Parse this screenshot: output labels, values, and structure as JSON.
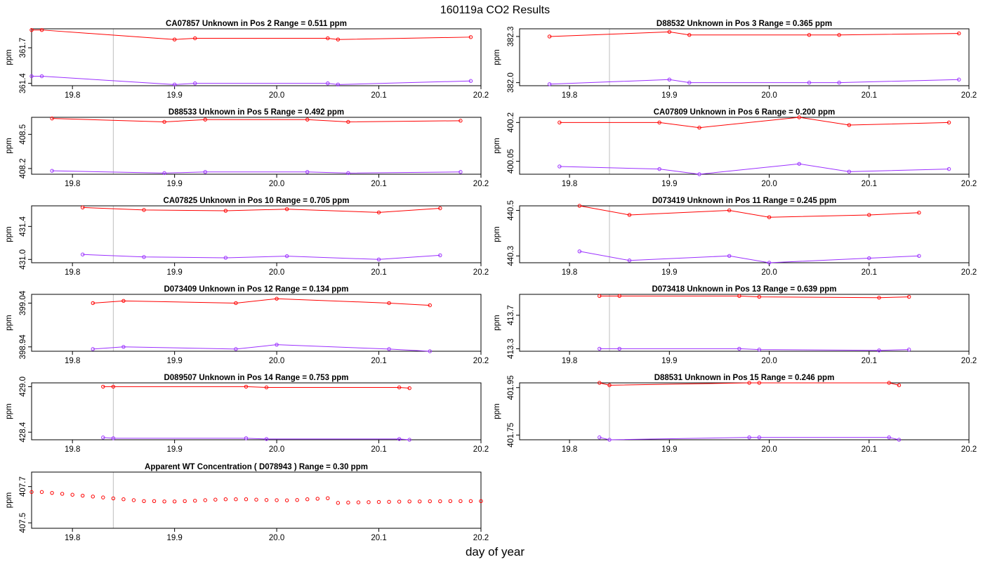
{
  "figure": {
    "title": "160119a  CO2 Results",
    "xlabel": "day of year"
  },
  "colors": {
    "upper": "#ff0000",
    "lower": "#9b30ff",
    "wt": "#ff0000",
    "axis": "#000000",
    "vline": "#bebebe"
  },
  "chart_data": [
    {
      "type": "line",
      "title": "CA07857    Unknown in Pos 2         Range =  0.511 ppm",
      "ylabel": "ppm",
      "xlim": [
        19.76,
        20.2
      ],
      "ylim": [
        361.38,
        361.86
      ],
      "xticks": [
        19.8,
        19.9,
        20.0,
        20.1,
        20.2
      ],
      "yticks": [
        361.4,
        361.7
      ],
      "vlines": [
        19.84,
        20.2
      ],
      "series": [
        {
          "role": "upper",
          "x": [
            19.76,
            19.77,
            19.9,
            19.92,
            20.05,
            20.06,
            20.19
          ],
          "y": [
            361.85,
            361.85,
            361.77,
            361.78,
            361.78,
            361.77,
            361.79
          ]
        },
        {
          "role": "lower",
          "x": [
            19.76,
            19.77,
            19.9,
            19.92,
            20.05,
            20.06,
            20.19
          ],
          "y": [
            361.46,
            361.46,
            361.39,
            361.4,
            361.4,
            361.39,
            361.42
          ]
        }
      ]
    },
    {
      "type": "line",
      "title": "D88532    Unknown in Pos 3         Range =  0.365 ppm",
      "ylabel": "ppm",
      "xlim": [
        19.75,
        20.2
      ],
      "ylim": [
        381.98,
        382.35
      ],
      "xticks": [
        19.8,
        19.9,
        20.0,
        20.1,
        20.2
      ],
      "yticks": [
        382.0,
        382.3
      ],
      "vlines": [
        19.84,
        20.2
      ],
      "series": [
        {
          "role": "upper",
          "x": [
            19.78,
            19.9,
            19.92,
            20.04,
            20.07,
            20.19
          ],
          "y": [
            382.3,
            382.33,
            382.31,
            382.31,
            382.31,
            382.32
          ]
        },
        {
          "role": "lower",
          "x": [
            19.78,
            19.9,
            19.92,
            20.04,
            20.07,
            20.19
          ],
          "y": [
            381.99,
            382.02,
            382.0,
            382.0,
            382.0,
            382.02
          ]
        }
      ]
    },
    {
      "type": "line",
      "title": "D88533    Unknown in Pos 5         Range =  0.492 ppm",
      "ylabel": "ppm",
      "xlim": [
        19.76,
        20.2
      ],
      "ylim": [
        408.15,
        408.65
      ],
      "xticks": [
        19.8,
        19.9,
        20.0,
        20.1,
        20.2
      ],
      "yticks": [
        408.2,
        408.5
      ],
      "vlines": [
        19.84,
        20.2
      ],
      "series": [
        {
          "role": "upper",
          "x": [
            19.78,
            19.89,
            19.93,
            20.03,
            20.07,
            20.18
          ],
          "y": [
            408.64,
            408.61,
            408.63,
            408.63,
            408.61,
            408.62
          ]
        },
        {
          "role": "lower",
          "x": [
            19.78,
            19.89,
            19.93,
            20.03,
            20.07,
            20.18
          ],
          "y": [
            408.18,
            408.16,
            408.17,
            408.17,
            408.16,
            408.17
          ]
        }
      ]
    },
    {
      "type": "line",
      "title": "CA07809    Unknown in Pos 6         Range =  0.200 ppm",
      "ylabel": "ppm",
      "xlim": [
        19.75,
        20.2
      ],
      "ylim": [
        400.0,
        400.22
      ],
      "xticks": [
        19.8,
        19.9,
        20.0,
        20.1,
        20.2
      ],
      "yticks": [
        400.05,
        400.2
      ],
      "vlines": [
        19.84,
        20.2
      ],
      "series": [
        {
          "role": "upper",
          "x": [
            19.79,
            19.89,
            19.93,
            20.03,
            20.08,
            20.18
          ],
          "y": [
            400.2,
            400.2,
            400.18,
            400.22,
            400.19,
            400.2
          ]
        },
        {
          "role": "lower",
          "x": [
            19.79,
            19.89,
            19.93,
            20.03,
            20.08,
            20.18
          ],
          "y": [
            400.03,
            400.02,
            400.0,
            400.04,
            400.01,
            400.02
          ]
        }
      ]
    },
    {
      "type": "line",
      "title": "CA07825    Unknown in Pos 10         Range =  0.705 ppm",
      "ylabel": "ppm",
      "xlim": [
        19.76,
        20.2
      ],
      "ylim": [
        430.96,
        431.65
      ],
      "xticks": [
        19.8,
        19.9,
        20.0,
        20.1,
        20.2
      ],
      "yticks": [
        431.0,
        431.4
      ],
      "vlines": [
        19.84,
        20.2
      ],
      "series": [
        {
          "role": "upper",
          "x": [
            19.81,
            19.87,
            19.95,
            20.01,
            20.1,
            20.16
          ],
          "y": [
            431.63,
            431.6,
            431.59,
            431.61,
            431.57,
            431.62
          ]
        },
        {
          "role": "lower",
          "x": [
            19.81,
            19.87,
            19.95,
            20.01,
            20.1,
            20.16
          ],
          "y": [
            431.06,
            431.03,
            431.02,
            431.04,
            431.0,
            431.05
          ]
        }
      ]
    },
    {
      "type": "line",
      "title": "D073419    Unknown in Pos 11         Range =  0.245 ppm",
      "ylabel": "ppm",
      "xlim": [
        19.75,
        20.2
      ],
      "ylim": [
        440.27,
        440.52
      ],
      "xticks": [
        19.8,
        19.9,
        20.0,
        20.1,
        20.2
      ],
      "yticks": [
        440.3,
        440.5
      ],
      "vlines": [
        19.84,
        20.2
      ],
      "series": [
        {
          "role": "upper",
          "x": [
            19.81,
            19.86,
            19.96,
            20.0,
            20.1,
            20.15
          ],
          "y": [
            440.52,
            440.48,
            440.5,
            440.47,
            440.48,
            440.49
          ]
        },
        {
          "role": "lower",
          "x": [
            19.81,
            19.86,
            19.96,
            20.0,
            20.1,
            20.15
          ],
          "y": [
            440.32,
            440.28,
            440.3,
            440.27,
            440.29,
            440.3
          ]
        }
      ]
    },
    {
      "type": "line",
      "title": "D073409    Unknown in Pos 12         Range =  0.134 ppm",
      "ylabel": "ppm",
      "xlim": [
        19.76,
        20.2
      ],
      "ylim": [
        398.93,
        399.06
      ],
      "xticks": [
        19.8,
        19.9,
        20.0,
        20.1,
        20.2
      ],
      "yticks": [
        398.94,
        399.04
      ],
      "vlines": [
        19.84,
        20.2
      ],
      "series": [
        {
          "role": "upper",
          "x": [
            19.82,
            19.85,
            19.96,
            20.0,
            20.11,
            20.15
          ],
          "y": [
            399.04,
            399.045,
            399.04,
            399.05,
            399.04,
            399.035
          ]
        },
        {
          "role": "lower",
          "x": [
            19.82,
            19.85,
            19.96,
            20.0,
            20.11,
            20.15
          ],
          "y": [
            398.935,
            398.94,
            398.935,
            398.945,
            398.935,
            398.93
          ]
        }
      ]
    },
    {
      "type": "line",
      "title": "D073418    Unknown in Pos 13         Range =  0.639 ppm",
      "ylabel": "ppm",
      "xlim": [
        19.75,
        20.2
      ],
      "ylim": [
        413.27,
        413.95
      ],
      "xticks": [
        19.8,
        19.9,
        20.0,
        20.1,
        20.2
      ],
      "yticks": [
        413.3,
        413.7
      ],
      "vlines": [
        19.84,
        20.2
      ],
      "series": [
        {
          "role": "upper",
          "x": [
            19.83,
            19.85,
            19.97,
            19.99,
            20.11,
            20.14
          ],
          "y": [
            413.93,
            413.93,
            413.93,
            413.92,
            413.91,
            413.92
          ]
        },
        {
          "role": "lower",
          "x": [
            19.83,
            19.85,
            19.97,
            19.99,
            20.11,
            20.14
          ],
          "y": [
            413.3,
            413.3,
            413.3,
            413.29,
            413.28,
            413.29
          ]
        }
      ]
    },
    {
      "type": "line",
      "title": "D089507    Unknown in Pos 14         Range =  0.753 ppm",
      "ylabel": "ppm",
      "xlim": [
        19.76,
        20.2
      ],
      "ylim": [
        428.3,
        429.05
      ],
      "xticks": [
        19.8,
        19.9,
        20.0,
        20.1,
        20.2
      ],
      "yticks": [
        428.4,
        429.0
      ],
      "vlines": [
        19.84,
        20.2
      ],
      "series": [
        {
          "role": "upper",
          "x": [
            19.83,
            19.84,
            19.97,
            19.99,
            20.12,
            20.13
          ],
          "y": [
            429.0,
            429.0,
            429.0,
            428.99,
            428.99,
            428.98
          ]
        },
        {
          "role": "lower",
          "x": [
            19.83,
            19.84,
            19.97,
            19.99,
            20.12,
            20.13
          ],
          "y": [
            428.33,
            428.32,
            428.32,
            428.31,
            428.31,
            428.3
          ]
        }
      ]
    },
    {
      "type": "line",
      "title": "D88531    Unknown in Pos 15         Range =  0.246 ppm",
      "ylabel": "ppm",
      "xlim": [
        19.75,
        20.2
      ],
      "ylim": [
        401.73,
        401.97
      ],
      "xticks": [
        19.8,
        19.9,
        20.0,
        20.1,
        20.2
      ],
      "yticks": [
        401.75,
        401.95
      ],
      "vlines": [
        19.84,
        20.2
      ],
      "series": [
        {
          "role": "upper",
          "x": [
            19.83,
            19.84,
            19.98,
            19.99,
            20.12,
            20.13
          ],
          "y": [
            401.97,
            401.96,
            401.97,
            401.97,
            401.97,
            401.96
          ]
        },
        {
          "role": "lower",
          "x": [
            19.83,
            19.84,
            19.98,
            19.99,
            20.12,
            20.13
          ],
          "y": [
            401.74,
            401.73,
            401.74,
            401.74,
            401.74,
            401.73
          ]
        }
      ]
    },
    {
      "type": "scatter",
      "title": "Apparent WT Concentration ( D078943 )         Range = 0.30 ppm",
      "ylabel": "ppm",
      "xlim": [
        19.76,
        20.2
      ],
      "ylim": [
        407.47,
        407.78
      ],
      "xticks": [
        19.8,
        19.9,
        20.0,
        20.1,
        20.2
      ],
      "yticks": [
        407.5,
        407.7
      ],
      "vlines": [
        19.84,
        20.2
      ],
      "series": [
        {
          "role": "wt",
          "x": [
            19.76,
            19.77,
            19.78,
            19.79,
            19.8,
            19.81,
            19.82,
            19.83,
            19.84,
            19.85,
            19.86,
            19.87,
            19.88,
            19.89,
            19.9,
            19.91,
            19.92,
            19.93,
            19.94,
            19.95,
            19.96,
            19.97,
            19.98,
            19.99,
            20.0,
            20.01,
            20.02,
            20.03,
            20.04,
            20.05,
            20.06,
            20.07,
            20.08,
            20.09,
            20.1,
            20.11,
            20.12,
            20.13,
            20.14,
            20.15,
            20.16,
            20.17,
            20.18,
            20.19,
            20.2
          ],
          "y": [
            407.67,
            407.67,
            407.665,
            407.66,
            407.655,
            407.65,
            407.645,
            407.64,
            407.635,
            407.63,
            407.625,
            407.62,
            407.62,
            407.618,
            407.618,
            407.62,
            407.622,
            407.625,
            407.628,
            407.63,
            407.63,
            407.63,
            407.628,
            407.626,
            407.625,
            407.624,
            407.626,
            407.63,
            407.633,
            407.636,
            407.61,
            407.612,
            407.613,
            407.614,
            407.615,
            407.616,
            407.617,
            407.618,
            407.618,
            407.619,
            407.619,
            407.62,
            407.62,
            407.62,
            407.62
          ]
        }
      ]
    }
  ]
}
